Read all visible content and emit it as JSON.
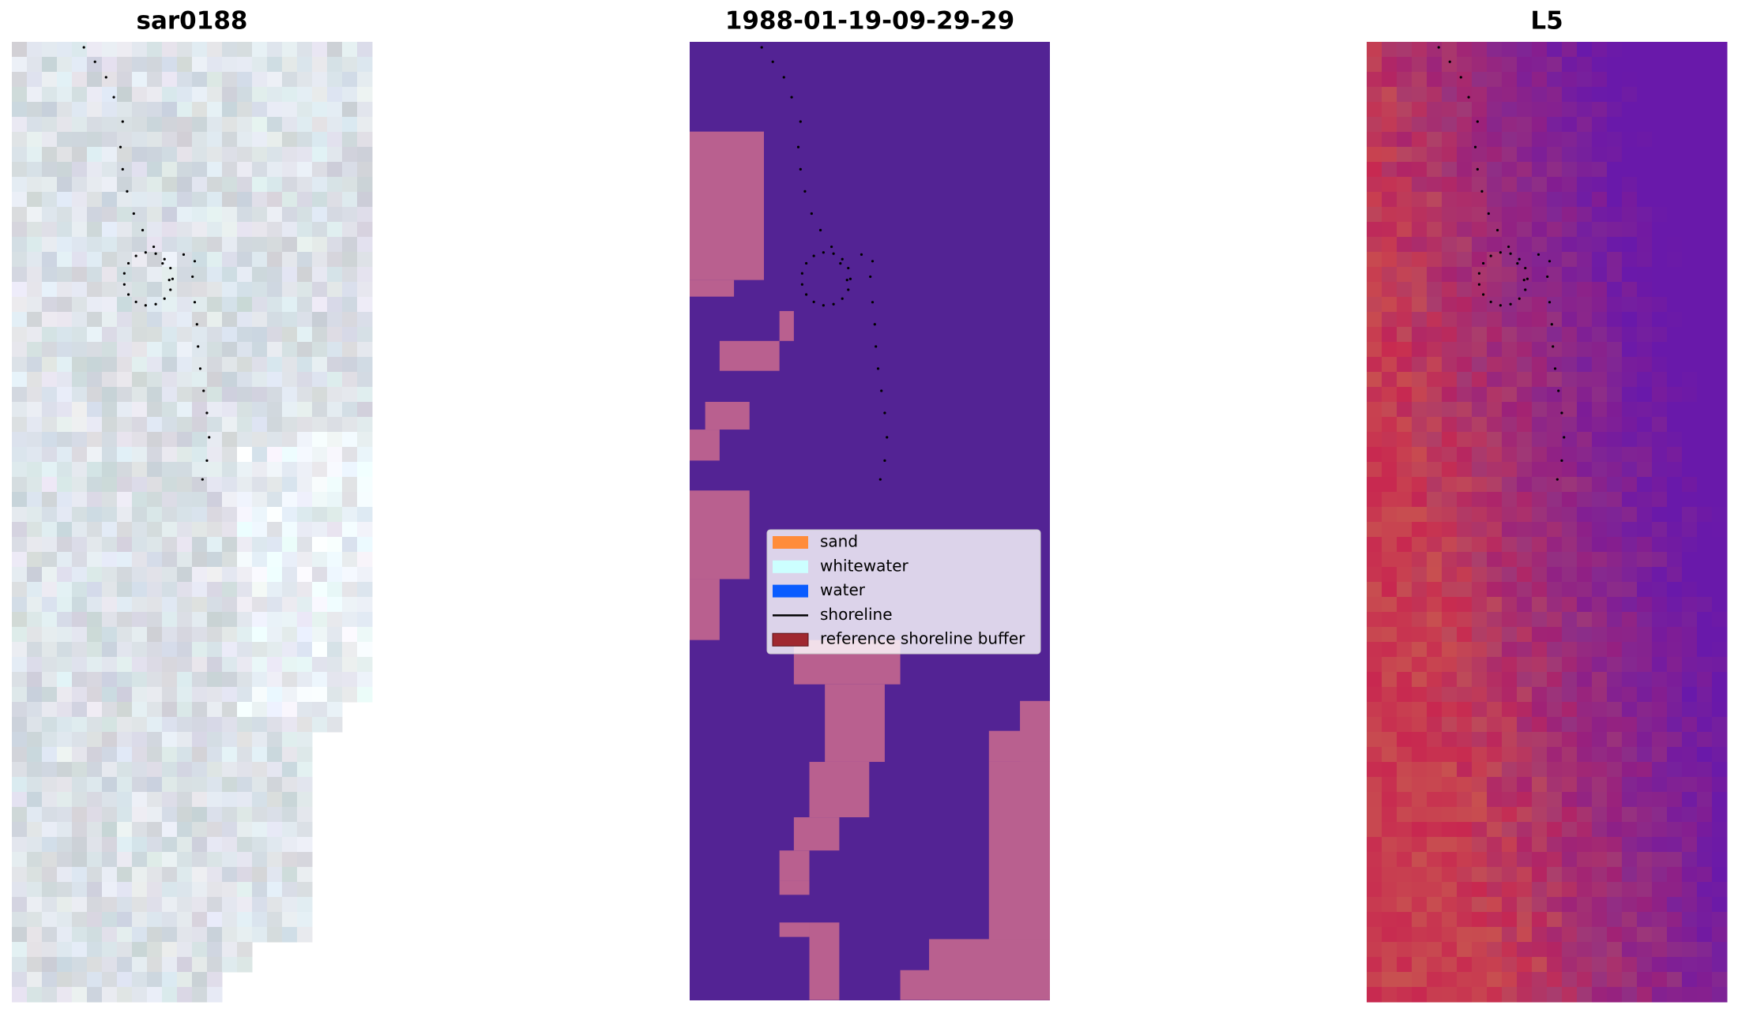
{
  "panels": [
    {
      "title": "sar0188"
    },
    {
      "title": "1988-01-19-09-29-29"
    },
    {
      "title": "L5"
    }
  ],
  "legend": {
    "items": [
      {
        "label": "sand",
        "color": "#ff8c3a"
      },
      {
        "label": "whitewater",
        "color": "#ccffff"
      },
      {
        "label": "water",
        "color": "#0a5cff"
      },
      {
        "label": "shoreline",
        "color": "#000000"
      },
      {
        "label": "reference shoreline buffer",
        "color": "#a02830"
      }
    ]
  }
}
